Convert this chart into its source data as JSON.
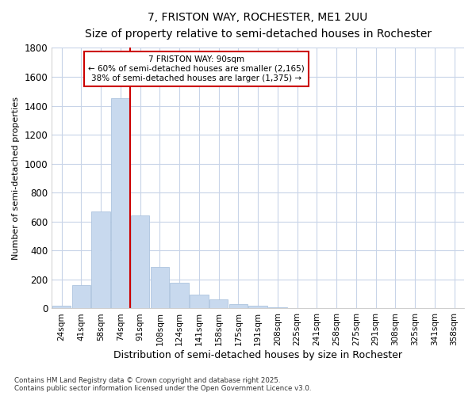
{
  "title_line1": "7, FRISTON WAY, ROCHESTER, ME1 2UU",
  "title_line2": "Size of property relative to semi-detached houses in Rochester",
  "xlabel": "Distribution of semi-detached houses by size in Rochester",
  "ylabel": "Number of semi-detached properties",
  "bar_color": "#c8d9ee",
  "bar_edge_color": "#adc4df",
  "vline_color": "#cc0000",
  "annotation_title": "7 FRISTON WAY: 90sqm",
  "annotation_line1": "← 60% of semi-detached houses are smaller (2,165)",
  "annotation_line2": "38% of semi-detached houses are larger (1,375) →",
  "background_color": "#ffffff",
  "plot_bg_color": "#ffffff",
  "grid_color": "#c8d4e8",
  "categories": [
    "24sqm",
    "41sqm",
    "58sqm",
    "74sqm",
    "91sqm",
    "108sqm",
    "124sqm",
    "141sqm",
    "158sqm",
    "175sqm",
    "191sqm",
    "208sqm",
    "225sqm",
    "241sqm",
    "258sqm",
    "275sqm",
    "291sqm",
    "308sqm",
    "325sqm",
    "341sqm",
    "358sqm"
  ],
  "values": [
    20,
    160,
    670,
    1450,
    640,
    285,
    175,
    95,
    60,
    30,
    20,
    10,
    5,
    3,
    3,
    2,
    2,
    1,
    1,
    1,
    1
  ],
  "ylim": [
    0,
    1800
  ],
  "yticks": [
    0,
    200,
    400,
    600,
    800,
    1000,
    1200,
    1400,
    1600,
    1800
  ],
  "footnote": "Contains HM Land Registry data © Crown copyright and database right 2025.\nContains public sector information licensed under the Open Government Licence v3.0."
}
